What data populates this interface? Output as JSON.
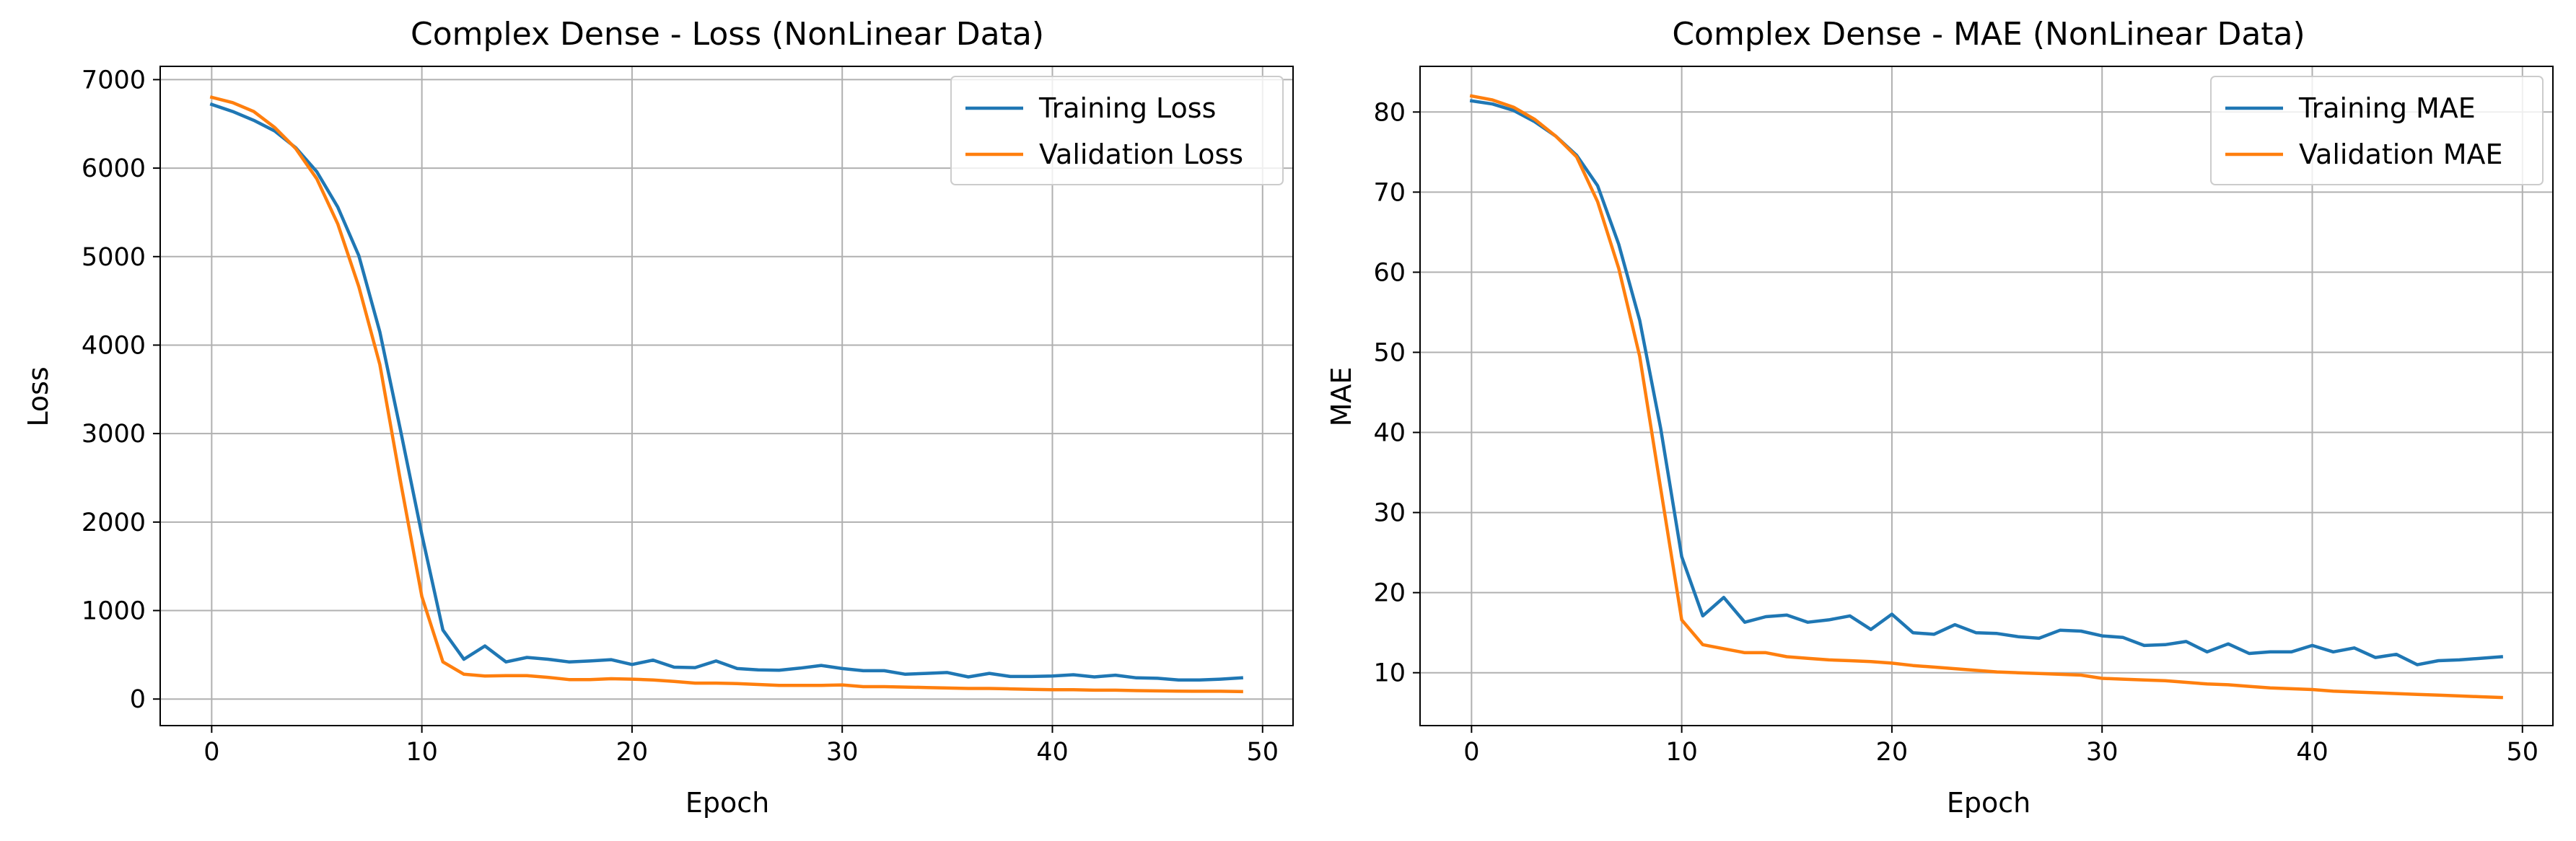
{
  "chart_data": [
    {
      "type": "line",
      "title": "Complex Dense - Loss (NonLinear Data)",
      "xlabel": "Epoch",
      "ylabel": "Loss",
      "xlim": [
        -2.45,
        51.45
      ],
      "ylim": [
        -300,
        7150
      ],
      "xticks": [
        0,
        10,
        20,
        30,
        40,
        50
      ],
      "yticks": [
        0,
        1000,
        2000,
        3000,
        4000,
        5000,
        6000,
        7000
      ],
      "grid": true,
      "legend_position": "top-right",
      "x": [
        0,
        1,
        2,
        3,
        4,
        5,
        6,
        7,
        8,
        9,
        10,
        11,
        12,
        13,
        14,
        15,
        16,
        17,
        18,
        19,
        20,
        21,
        22,
        23,
        24,
        25,
        26,
        27,
        28,
        29,
        30,
        31,
        32,
        33,
        34,
        35,
        36,
        37,
        38,
        39,
        40,
        41,
        42,
        43,
        44,
        45,
        46,
        47,
        48,
        49
      ],
      "series": [
        {
          "name": "Training Loss",
          "color": "#1f77b4",
          "values": [
            6720,
            6640,
            6540,
            6420,
            6230,
            5960,
            5560,
            5010,
            4150,
            3020,
            1860,
            780,
            450,
            600,
            420,
            470,
            450,
            420,
            430,
            445,
            390,
            440,
            360,
            355,
            430,
            345,
            330,
            325,
            350,
            380,
            345,
            320,
            320,
            280,
            290,
            300,
            250,
            290,
            255,
            255,
            260,
            275,
            250,
            270,
            240,
            235,
            215,
            215,
            225,
            240
          ]
        },
        {
          "name": "Validation Loss",
          "color": "#ff7f0e",
          "values": [
            6800,
            6740,
            6640,
            6460,
            6220,
            5880,
            5370,
            4660,
            3780,
            2440,
            1160,
            420,
            280,
            260,
            265,
            265,
            245,
            220,
            220,
            230,
            225,
            215,
            200,
            180,
            180,
            175,
            165,
            155,
            155,
            155,
            160,
            140,
            140,
            135,
            130,
            125,
            120,
            120,
            115,
            110,
            105,
            105,
            100,
            100,
            95,
            92,
            90,
            88,
            88,
            85
          ]
        }
      ]
    },
    {
      "type": "line",
      "title": "Complex Dense - MAE (NonLinear Data)",
      "xlabel": "Epoch",
      "ylabel": "MAE",
      "xlim": [
        -2.45,
        51.45
      ],
      "ylim": [
        3.4,
        85.7
      ],
      "xticks": [
        0,
        10,
        20,
        30,
        40,
        50
      ],
      "yticks": [
        10,
        20,
        30,
        40,
        50,
        60,
        70,
        80
      ],
      "grid": true,
      "legend_position": "top-right",
      "x": [
        0,
        1,
        2,
        3,
        4,
        5,
        6,
        7,
        8,
        9,
        10,
        11,
        12,
        13,
        14,
        15,
        16,
        17,
        18,
        19,
        20,
        21,
        22,
        23,
        24,
        25,
        26,
        27,
        28,
        29,
        30,
        31,
        32,
        33,
        34,
        35,
        36,
        37,
        38,
        39,
        40,
        41,
        42,
        43,
        44,
        45,
        46,
        47,
        48,
        49
      ],
      "series": [
        {
          "name": "Training MAE",
          "color": "#1f77b4",
          "values": [
            81.4,
            81.0,
            80.2,
            78.8,
            77.0,
            74.6,
            70.8,
            63.5,
            54.0,
            40.5,
            24.5,
            17.1,
            19.4,
            16.3,
            17.0,
            17.2,
            16.3,
            16.6,
            17.1,
            15.4,
            17.3,
            15.0,
            14.8,
            16.0,
            15.0,
            14.9,
            14.5,
            14.3,
            15.3,
            15.2,
            14.6,
            14.4,
            13.4,
            13.5,
            13.9,
            12.6,
            13.6,
            12.4,
            12.6,
            12.6,
            13.4,
            12.6,
            13.1,
            11.9,
            12.3,
            11.0,
            11.5,
            11.6,
            11.8,
            12.0
          ]
        },
        {
          "name": "Validation MAE",
          "color": "#ff7f0e",
          "values": [
            82.0,
            81.5,
            80.6,
            79.1,
            77.0,
            74.4,
            68.8,
            60.5,
            49.5,
            33.0,
            16.6,
            13.5,
            13.0,
            12.5,
            12.5,
            12.0,
            11.8,
            11.6,
            11.5,
            11.4,
            11.2,
            10.9,
            10.7,
            10.5,
            10.3,
            10.1,
            10.0,
            9.9,
            9.8,
            9.7,
            9.3,
            9.2,
            9.1,
            9.0,
            8.8,
            8.6,
            8.5,
            8.3,
            8.1,
            8.0,
            7.9,
            7.7,
            7.6,
            7.5,
            7.4,
            7.3,
            7.2,
            7.1,
            7.0,
            6.9
          ]
        }
      ]
    }
  ]
}
